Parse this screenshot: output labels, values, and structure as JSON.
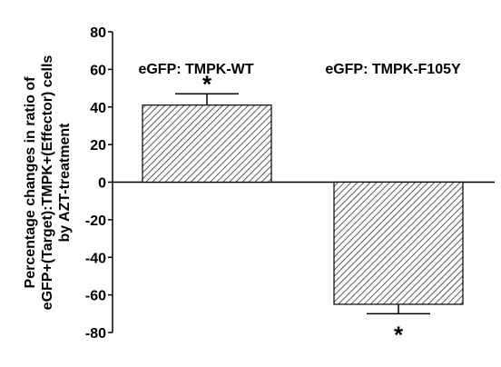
{
  "chart_data": {
    "type": "bar",
    "y_label_lines": [
      "Percentage changes in ratio of",
      "eGFP+(Target):TMPK+(Effector) cells",
      "by AZT-treatment"
    ],
    "categories": [
      "eGFP: TMPK-WT",
      "eGFP: TMPK-F105Y"
    ],
    "values": [
      41,
      -65
    ],
    "errors": [
      6,
      5
    ],
    "significance_labels": [
      "*",
      "*"
    ],
    "color": "#000000",
    "ylim": [
      -80,
      80
    ],
    "yticks": [
      -80,
      -60,
      -40,
      -20,
      0,
      20,
      40,
      60,
      80
    ]
  }
}
